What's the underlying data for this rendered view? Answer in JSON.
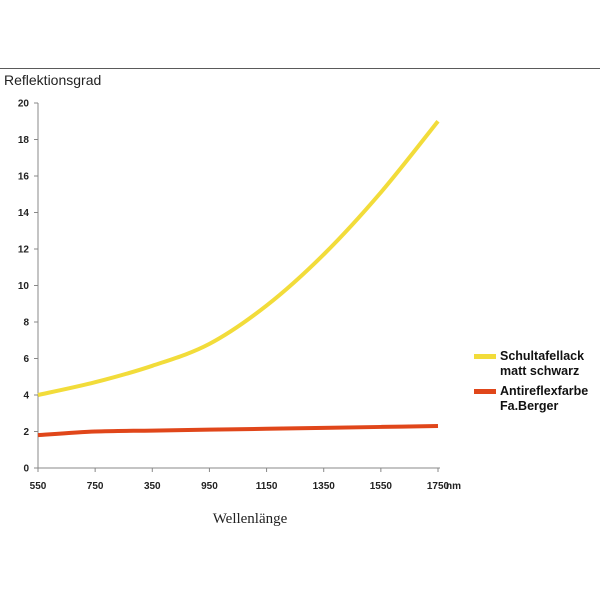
{
  "chart_data": {
    "type": "line",
    "ylabel": "Reflektionsgrad",
    "xlabel": "Wellenlänge",
    "x_unit": "nm",
    "categories": [
      "550",
      "750",
      "350",
      "950",
      "1150",
      "1350",
      "1550",
      "1750"
    ],
    "yticks": [
      "0",
      "2",
      "4",
      "6",
      "8",
      "10",
      "12",
      "14",
      "16",
      "18",
      "20"
    ],
    "ylim": [
      0,
      20
    ],
    "grid": false,
    "legend_position": "right",
    "series": [
      {
        "name": "Schultafellack matt schwarz",
        "name_lines": [
          "Schultafellack",
          "matt schwarz"
        ],
        "color": "#f2dc3a",
        "values": [
          4.0,
          4.7,
          5.6,
          6.8,
          8.9,
          11.7,
          15.1,
          19.0
        ]
      },
      {
        "name": "Antireflexfarbe Fa.Berger",
        "name_lines": [
          "Antireflexfarbe",
          "Fa.Berger"
        ],
        "color": "#e0461a",
        "values": [
          1.8,
          2.0,
          2.05,
          2.1,
          2.15,
          2.2,
          2.25,
          2.3
        ]
      }
    ]
  }
}
